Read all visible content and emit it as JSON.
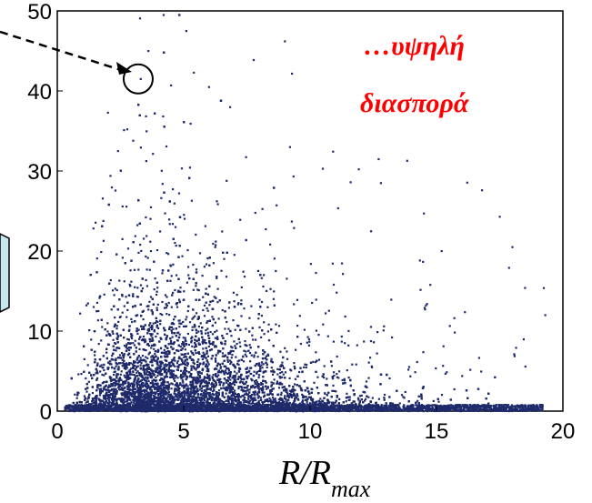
{
  "chart_data": {
    "type": "scatter",
    "title": "",
    "xlabel": "R/R",
    "xlabel_subscript": "max",
    "ylabel": "",
    "xlim": [
      0,
      20
    ],
    "ylim": [
      0,
      50
    ],
    "x_ticks": [
      "0",
      "5",
      "10",
      "15",
      "20"
    ],
    "y_ticks": [
      "0",
      "10",
      "20",
      "30",
      "40",
      "50"
    ],
    "grid": false,
    "marker_color": "#1f2a6b",
    "annotations": {
      "line1": "…υψηλή",
      "line2": "διασπορά",
      "color": "#ff0000"
    },
    "highlighted_point": {
      "x": 3.2,
      "y": 41.5
    },
    "sample_outlier_points": [
      {
        "x": 3.3,
        "y": 41.5
      },
      {
        "x": 3.6,
        "y": 45.0
      },
      {
        "x": 4.2,
        "y": 49.5
      },
      {
        "x": 4.5,
        "y": 40.7
      },
      {
        "x": 5.1,
        "y": 47.5
      },
      {
        "x": 5.4,
        "y": 42.3
      },
      {
        "x": 6.0,
        "y": 40.5
      },
      {
        "x": 9.0,
        "y": 46.2
      },
      {
        "x": 2.0,
        "y": 37.3
      },
      {
        "x": 2.1,
        "y": 29.4
      },
      {
        "x": 2.4,
        "y": 32.5
      },
      {
        "x": 3.0,
        "y": 33.8
      },
      {
        "x": 9.2,
        "y": 33.0
      },
      {
        "x": 10.5,
        "y": 30.3
      },
      {
        "x": 11.6,
        "y": 28.6
      },
      {
        "x": 12.8,
        "y": 28.5
      },
      {
        "x": 14.5,
        "y": 24.7
      },
      {
        "x": 16.8,
        "y": 27.6
      },
      {
        "x": 17.5,
        "y": 24.3
      },
      {
        "x": 18.0,
        "y": 20.5
      },
      {
        "x": 18.5,
        "y": 15.4
      },
      {
        "x": 19.3,
        "y": 12.0
      },
      {
        "x": 0.9,
        "y": 12.2
      },
      {
        "x": 15.2,
        "y": 20.0
      }
    ],
    "density_model": {
      "description": "dense cloud peaking near x≈4–5, y≈0–5, sparse tail to x≈19",
      "n_points": 9000
    }
  }
}
